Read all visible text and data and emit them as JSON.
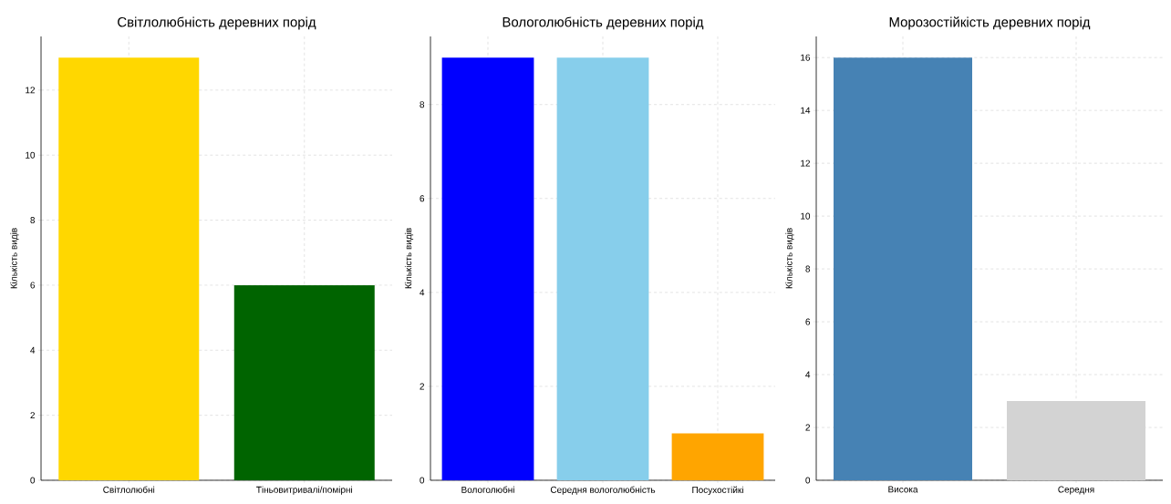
{
  "chart_data": [
    {
      "type": "bar",
      "title": "Світлолюбність деревних порід",
      "ylabel": "Кількість видів",
      "categories": [
        "Світлолюбні",
        "Тіньовитривалі/помірні"
      ],
      "values": [
        13,
        6
      ],
      "colors": [
        "#ffd700",
        "#006400"
      ],
      "ylim": [
        0,
        13.65
      ],
      "yticks": [
        0,
        2,
        4,
        6,
        8,
        10,
        12
      ],
      "grid": true
    },
    {
      "type": "bar",
      "title": "Вологолюбність деревних порід",
      "ylabel": "Кількість видів",
      "categories": [
        "Вологолюбні",
        "Середня вологолюбність",
        "Посухостійкі"
      ],
      "values": [
        9,
        9,
        1
      ],
      "colors": [
        "#0000ff",
        "#87ceeb",
        "#ffa500"
      ],
      "ylim": [
        0,
        9.45
      ],
      "yticks": [
        0,
        2,
        4,
        6,
        8
      ],
      "grid": true
    },
    {
      "type": "bar",
      "title": "Морозостійкість деревних порід",
      "ylabel": "Кількість видів",
      "categories": [
        "Висока",
        "Середня"
      ],
      "values": [
        16,
        3
      ],
      "colors": [
        "#4682b4",
        "#d3d3d3"
      ],
      "ylim": [
        0,
        16.8
      ],
      "yticks": [
        0,
        2,
        4,
        6,
        8,
        10,
        12,
        14,
        16
      ],
      "grid": true
    }
  ]
}
